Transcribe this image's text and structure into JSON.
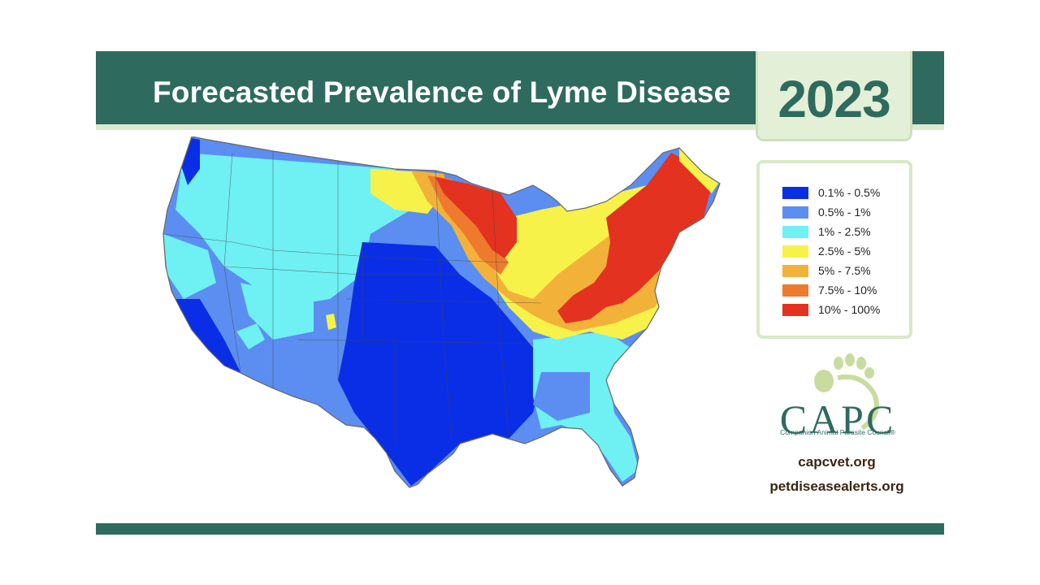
{
  "header": {
    "title": "Forecasted Prevalence of Lyme Disease",
    "year": "2023"
  },
  "legend": {
    "items": [
      {
        "label": "0.1% - 0.5%",
        "color": "#0a2ee6"
      },
      {
        "label": "0.5% - 1%",
        "color": "#5b8ef0"
      },
      {
        "label": "1% - 2.5%",
        "color": "#6ff0f3"
      },
      {
        "label": "2.5% - 5%",
        "color": "#f7f24a"
      },
      {
        "label": "5% - 7.5%",
        "color": "#f2b23a"
      },
      {
        "label": "7.5% - 10%",
        "color": "#ee7a2e"
      },
      {
        "label": "10% - 100%",
        "color": "#e3321f"
      }
    ]
  },
  "logo": {
    "name": "CAPC",
    "subtitle": "Companion Animal Parasite Council®"
  },
  "links": {
    "url1": "capcvet.org",
    "url2": "petdiseasealerts.org"
  },
  "colors": {
    "brand_green": "#2e6b5e",
    "light_green": "#dce9cf",
    "url_brown": "#3a2512"
  }
}
